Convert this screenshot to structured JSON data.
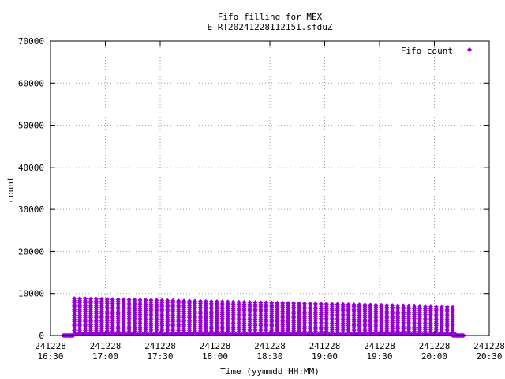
{
  "chart_data": {
    "type": "scatter",
    "title": [
      "Fifo filling for MEX",
      "E_RT20241228112151.sfduZ"
    ],
    "xlabel": "Time (yymmdd HH:MM)",
    "ylabel": "count",
    "xlim": [
      "241228 16:30",
      "241228 20:30"
    ],
    "ylim": [
      0,
      70000
    ],
    "grid": true,
    "legend_position": "top-right",
    "xtick_labels": [
      [
        "241228",
        "16:30"
      ],
      [
        "241228",
        "17:00"
      ],
      [
        "241228",
        "17:30"
      ],
      [
        "241228",
        "18:00"
      ],
      [
        "241228",
        "18:30"
      ],
      [
        "241228",
        "19:00"
      ],
      [
        "241228",
        "19:30"
      ],
      [
        "241228",
        "20:00"
      ],
      [
        "241228",
        "20:30"
      ]
    ],
    "ytick_labels": [
      "0",
      "10000",
      "20000",
      "30000",
      "40000",
      "50000",
      "60000",
      "70000"
    ],
    "series": [
      {
        "name": "Fifo count",
        "color": "#9400d3",
        "marker": "diamond",
        "pattern": {
          "baseline_from": "241228 16:37",
          "baseline_to": "241228 16:43",
          "baseline_value": 0,
          "sawtooth_start": "241228 16:43",
          "sawtooth_end": "241228 20:10",
          "column_step_minutes": 3,
          "row_step_count": 500,
          "peak_start": 8800,
          "peak_end": 6800,
          "trough": 300,
          "tail_from": "241228 20:10",
          "tail_to": "241228 20:16",
          "tail_value": 0
        }
      }
    ]
  }
}
